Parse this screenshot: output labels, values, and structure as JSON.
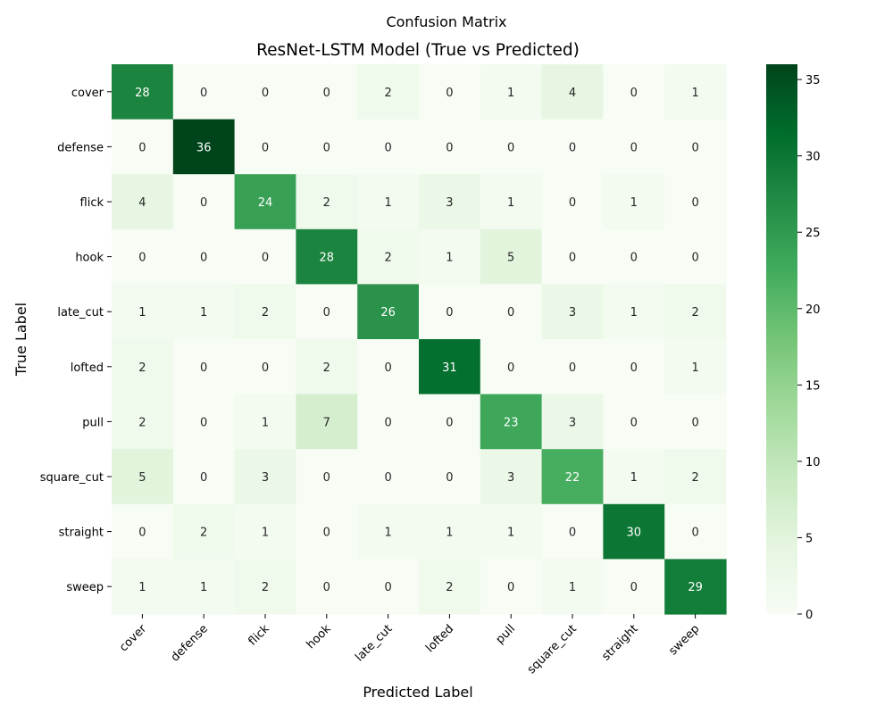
{
  "chart_data": {
    "type": "heatmap",
    "suptitle": "Confusion Matrix",
    "title": "ResNet-LSTM Model (True vs Predicted)",
    "xlabel": "Predicted Label",
    "ylabel": "True Label",
    "x_categories": [
      "cover",
      "defense",
      "flick",
      "hook",
      "late_cut",
      "lofted",
      "pull",
      "square_cut",
      "straight",
      "sweep"
    ],
    "y_categories": [
      "cover",
      "defense",
      "flick",
      "hook",
      "late_cut",
      "lofted",
      "pull",
      "square_cut",
      "straight",
      "sweep"
    ],
    "values": [
      [
        28,
        0,
        0,
        0,
        2,
        0,
        1,
        4,
        0,
        1
      ],
      [
        0,
        36,
        0,
        0,
        0,
        0,
        0,
        0,
        0,
        0
      ],
      [
        4,
        0,
        24,
        2,
        1,
        3,
        1,
        0,
        1,
        0
      ],
      [
        0,
        0,
        0,
        28,
        2,
        1,
        5,
        0,
        0,
        0
      ],
      [
        1,
        1,
        2,
        0,
        26,
        0,
        0,
        3,
        1,
        2
      ],
      [
        2,
        0,
        0,
        2,
        0,
        31,
        0,
        0,
        0,
        1
      ],
      [
        2,
        0,
        1,
        7,
        0,
        0,
        23,
        3,
        0,
        0
      ],
      [
        5,
        0,
        3,
        0,
        0,
        0,
        3,
        22,
        1,
        2
      ],
      [
        0,
        2,
        1,
        0,
        1,
        1,
        1,
        0,
        30,
        0
      ],
      [
        1,
        1,
        2,
        0,
        0,
        2,
        0,
        1,
        0,
        29
      ]
    ],
    "colormap": "Greens",
    "colorbar": {
      "min": 0,
      "max": 36,
      "ticks": [
        0,
        5,
        10,
        15,
        20,
        25,
        30,
        35
      ]
    },
    "annotations": true,
    "grid": false
  }
}
